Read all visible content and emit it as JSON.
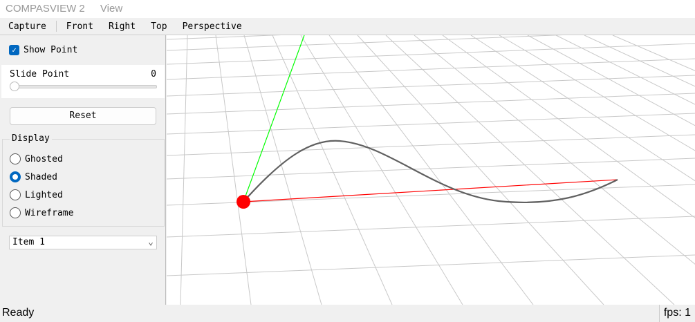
{
  "window": {
    "title": "COMPASVIEW 2",
    "menu": [
      "View"
    ]
  },
  "toolbar": {
    "items": [
      "Capture",
      "Front",
      "Right",
      "Top",
      "Perspective"
    ]
  },
  "panel": {
    "show_point": {
      "label": "Show Point",
      "checked": true
    },
    "slider": {
      "label": "Slide Point",
      "value": "0",
      "fraction": 0
    },
    "reset_label": "Reset",
    "display": {
      "title": "Display",
      "options": [
        "Ghosted",
        "Shaded",
        "Lighted",
        "Wireframe"
      ],
      "selected": "Shaded"
    },
    "combo": {
      "value": "Item 1"
    }
  },
  "viewport": {
    "colors": {
      "x_axis": "#ff0000",
      "y_axis": "#00ff00",
      "curve": "#606060",
      "point": "#ff0000",
      "grid": "#c8c8c8"
    }
  },
  "status": {
    "text": "Ready",
    "fps": "fps: 1"
  }
}
